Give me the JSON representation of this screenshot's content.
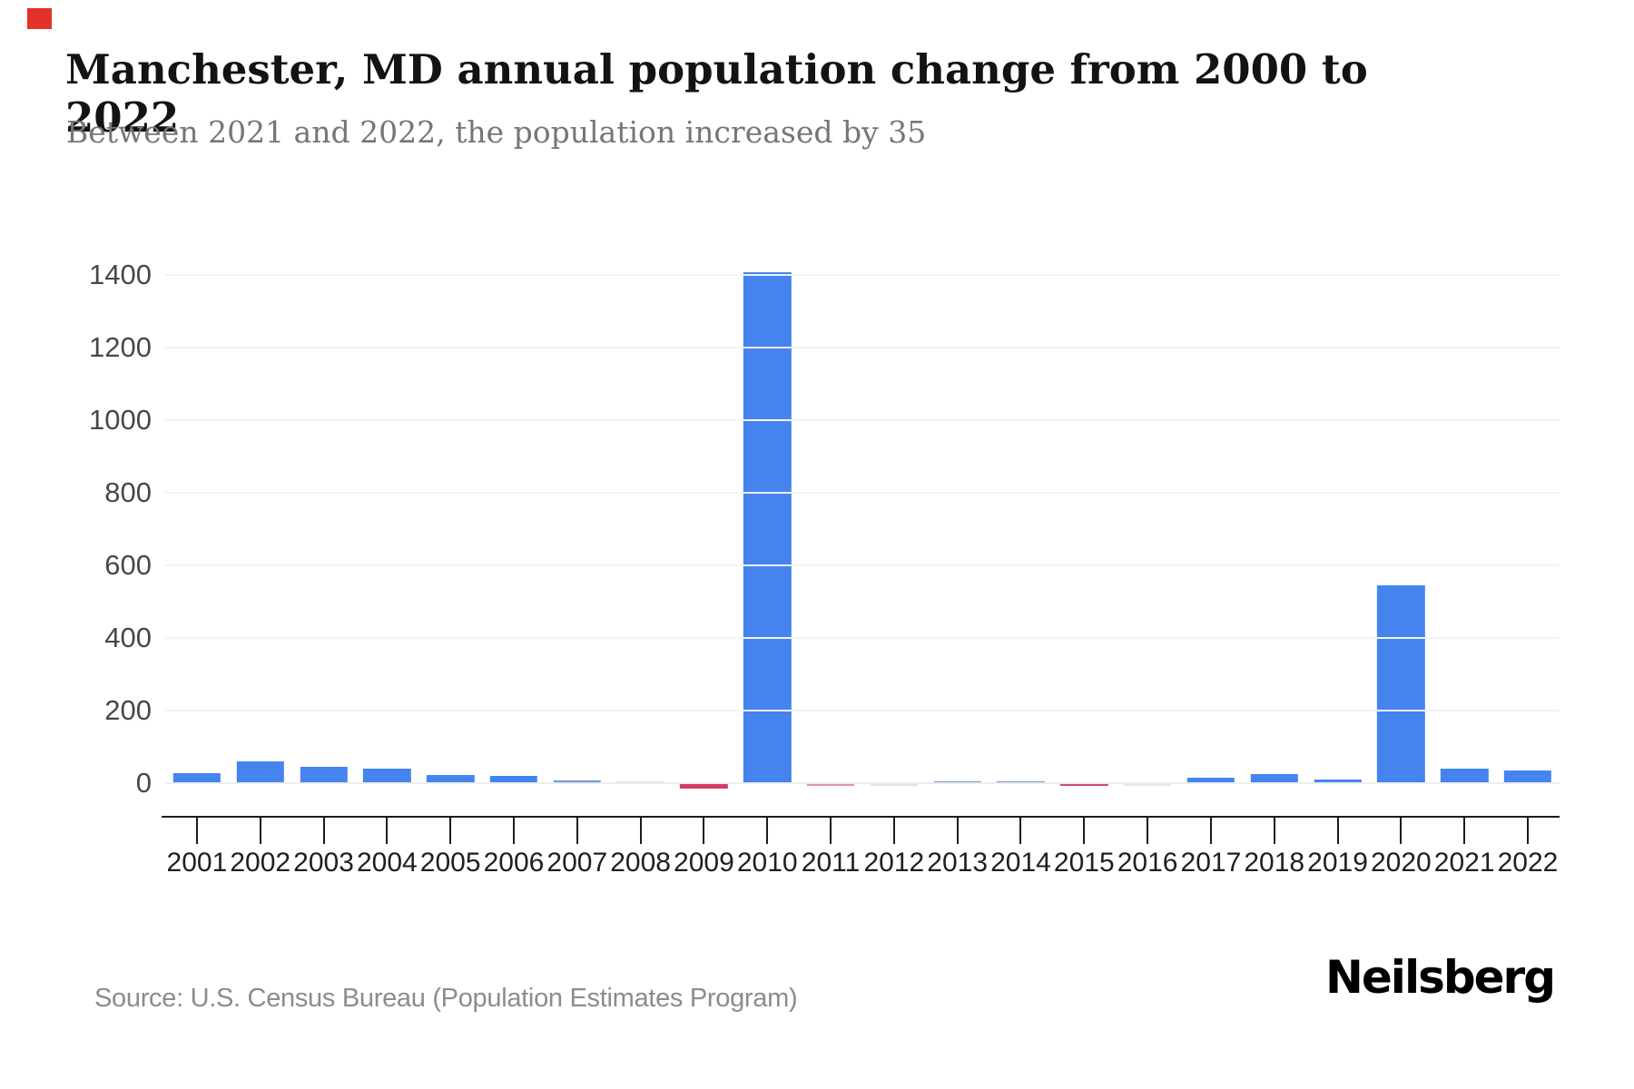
{
  "window": {
    "marker_color": "#e23229"
  },
  "header": {
    "title": "Manchester, MD annual population change from 2000 to 2022",
    "subtitle": "Between 2021 and 2022, the population increased by 35"
  },
  "chart_data": {
    "type": "bar",
    "title": "Manchester, MD annual population change from 2000 to 2022",
    "categories": [
      "2001",
      "2002",
      "2003",
      "2004",
      "2005",
      "2006",
      "2007",
      "2008",
      "2009",
      "2010",
      "2011",
      "2012",
      "2013",
      "2014",
      "2015",
      "2016",
      "2017",
      "2018",
      "2019",
      "2020",
      "2021",
      "2022"
    ],
    "values": [
      27,
      60,
      45,
      40,
      22,
      20,
      8,
      1,
      -15,
      1407,
      -3,
      -1,
      5,
      5,
      -6,
      -1,
      15,
      24,
      10,
      545,
      40,
      35
    ],
    "bar_colors": [
      "#4584ee",
      "#4584ee",
      "#4584ee",
      "#4584ee",
      "#4584ee",
      "#4584ee",
      "#6d95e3",
      "#e0e0e0",
      "#d23f63",
      "#4584ee",
      "#dc93a9",
      "#e3e3e3",
      "#7496cb",
      "#7496cb",
      "#d24a6c",
      "#ece5e6",
      "#4584ee",
      "#4584ee",
      "#4584ee",
      "#4584ee",
      "#4584ee",
      "#4584ee"
    ],
    "positive_color": "#4584ee",
    "negative_color": "#d23f63",
    "neutral_color": "#e2e2e2",
    "xlabel": "",
    "ylabel": "",
    "yticks": [
      0,
      200,
      400,
      600,
      800,
      1000,
      1200,
      1400
    ],
    "ylim": [
      0,
      1400
    ],
    "grid": "horizontal",
    "legend": "none"
  },
  "footer": {
    "source": "Source: U.S. Census Bureau (Population Estimates Program)",
    "brand": "Neilsberg"
  }
}
